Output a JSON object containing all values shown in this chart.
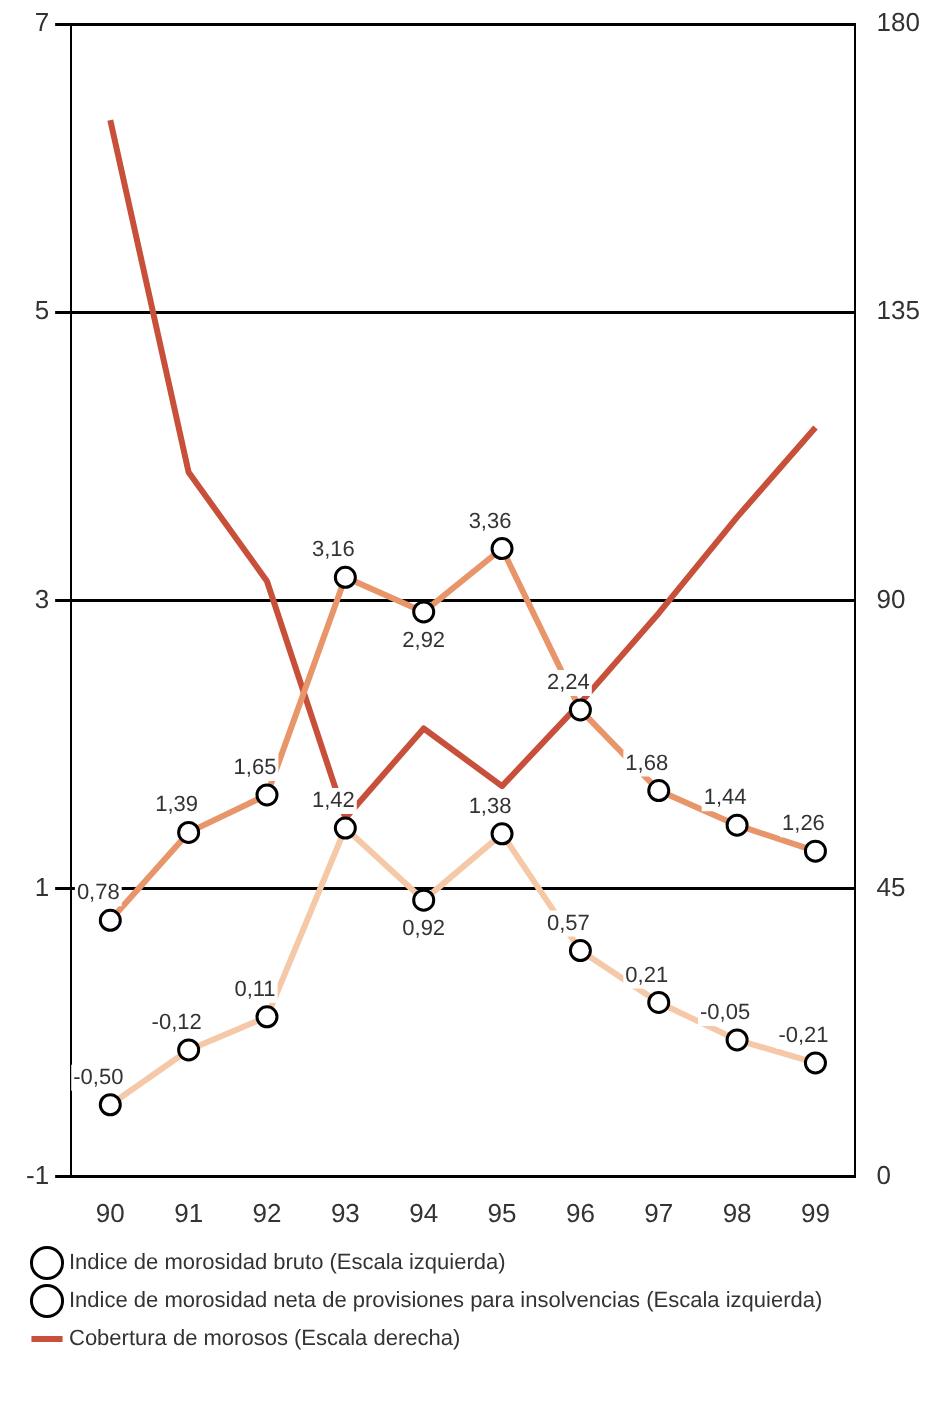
{
  "chart_data": {
    "type": "line",
    "categories": [
      "90",
      "91",
      "92",
      "93",
      "94",
      "95",
      "96",
      "97",
      "98",
      "99"
    ],
    "ylim": [
      -1,
      7
    ],
    "yticks": [
      -1,
      1,
      3,
      5,
      7
    ],
    "y2lim": [
      0,
      180
    ],
    "y2ticks": [
      0,
      45,
      90,
      135,
      180
    ],
    "grid": "y",
    "legend": "bottom",
    "series": [
      {
        "name": "Indice de morosidad bruto (Escala izquierda)",
        "color": "#e8956a",
        "marker": "circle",
        "values": [
          0.78,
          1.39,
          1.65,
          3.16,
          2.92,
          3.36,
          2.24,
          1.68,
          1.44,
          1.26
        ],
        "value_labels": [
          "0,78",
          "1,39",
          "1,65",
          "3,16",
          "2,92",
          "3,36",
          "2,24",
          "1,68",
          "1,44",
          "1,26"
        ]
      },
      {
        "name": "Indice de morosidad neta de provisiones para insolvencias (Escala izquierda)",
        "color": "#f5c9a8",
        "marker": "circle",
        "values": [
          -0.5,
          -0.12,
          0.11,
          1.42,
          0.92,
          1.38,
          0.57,
          0.21,
          -0.05,
          -0.21
        ],
        "value_labels": [
          "-0,50",
          "-0,12",
          "0,11",
          "1,42",
          "0,92",
          "1,38",
          "0,57",
          "0,21",
          "-0,05",
          "-0,21"
        ]
      },
      {
        "name": "Cobertura de morosos (Escala derecha)",
        "color": "#c8503a",
        "axis": "y2",
        "marker": "none",
        "values": [
          165,
          110,
          93,
          56,
          70,
          61,
          74,
          88,
          103,
          117
        ]
      }
    ]
  }
}
